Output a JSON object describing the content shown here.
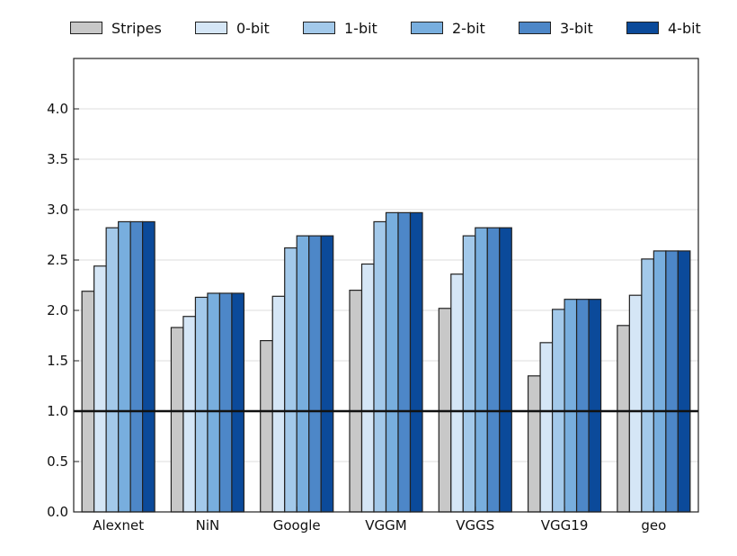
{
  "chart_data": {
    "type": "bar",
    "title": "",
    "xlabel": "",
    "ylabel": "",
    "categories": [
      "Alexnet",
      "NiN",
      "Google",
      "VGGM",
      "VGGS",
      "VGG19",
      "geo"
    ],
    "ylim": [
      0,
      4.5
    ],
    "yticks": [
      "0.0",
      "0.5",
      "1.0",
      "1.5",
      "2.0",
      "2.5",
      "3.0",
      "3.5",
      "4.0"
    ],
    "grid": "horizontal",
    "legend_position": "top",
    "reference_line": 1.0,
    "series": [
      {
        "name": "Stripes",
        "color": "#c8c8c8",
        "values": [
          2.19,
          1.83,
          1.7,
          2.2,
          2.02,
          1.35,
          1.85
        ]
      },
      {
        "name": "0-bit",
        "color": "#d5e6f6",
        "values": [
          2.44,
          1.94,
          2.14,
          2.46,
          2.36,
          1.68,
          2.15
        ]
      },
      {
        "name": "1-bit",
        "color": "#a3c9ea",
        "values": [
          2.82,
          2.13,
          2.62,
          2.88,
          2.74,
          2.01,
          2.51
        ]
      },
      {
        "name": "2-bit",
        "color": "#78aede",
        "values": [
          2.88,
          2.17,
          2.74,
          2.97,
          2.82,
          2.11,
          2.59
        ]
      },
      {
        "name": "3-bit",
        "color": "#4d87c8",
        "values": [
          2.88,
          2.17,
          2.74,
          2.97,
          2.82,
          2.11,
          2.59
        ]
      },
      {
        "name": "4-bit",
        "color": "#0b4a9a",
        "values": [
          2.88,
          2.17,
          2.74,
          2.97,
          2.82,
          2.11,
          2.59
        ]
      }
    ]
  }
}
